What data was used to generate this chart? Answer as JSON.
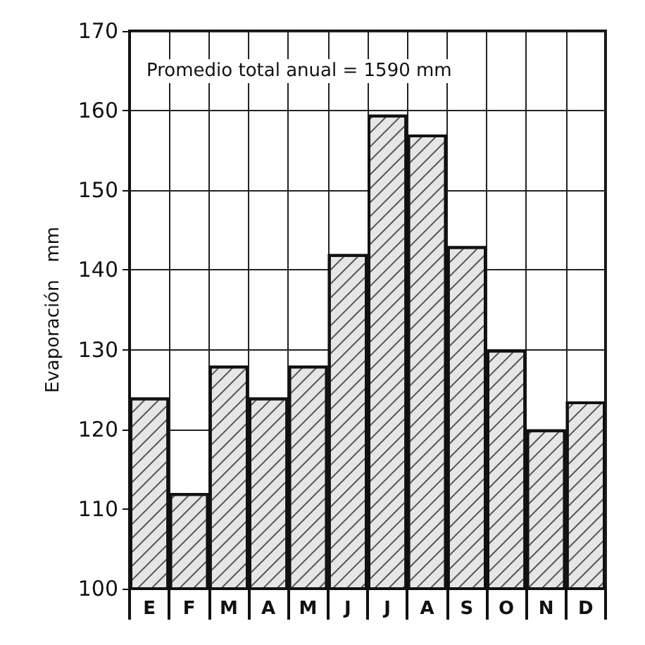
{
  "chart_data": {
    "type": "bar",
    "ylabel": "Evaporación   mm",
    "annotations": [
      "Promedio total anual = 1590 mm"
    ],
    "categories": [
      "E",
      "F",
      "M",
      "A",
      "M",
      "J",
      "J",
      "A",
      "S",
      "O",
      "N",
      "D"
    ],
    "values": [
      124,
      112,
      128,
      124,
      128,
      142,
      159.5,
      157,
      143,
      130,
      120,
      123.5
    ],
    "color": "#e6e6e6",
    "ylim": [
      100,
      170
    ],
    "yticks": [
      100,
      110,
      120,
      130,
      140,
      150,
      160,
      170
    ],
    "grid": true
  }
}
